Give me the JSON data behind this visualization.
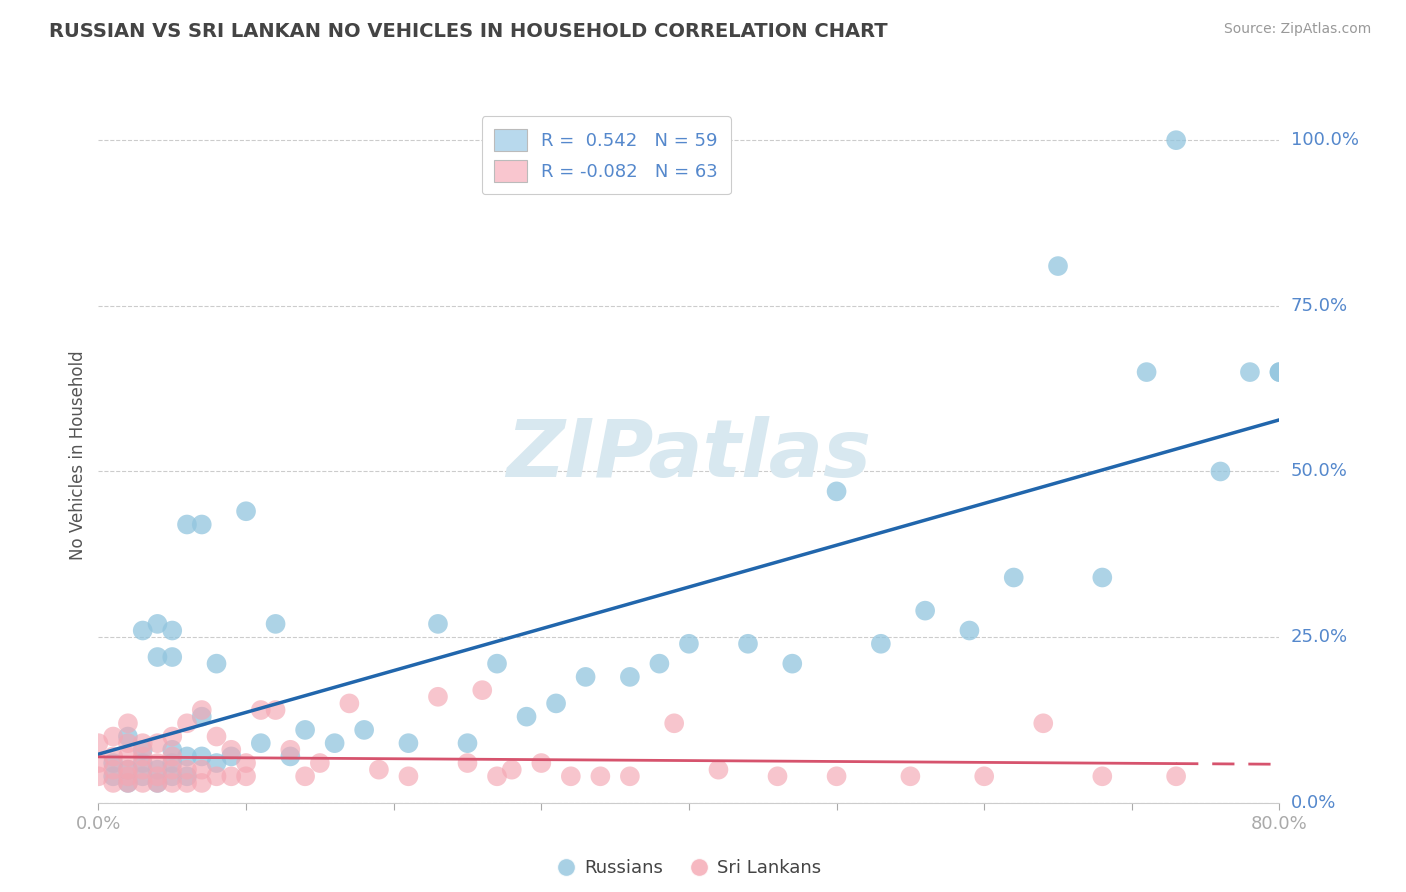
{
  "title": "RUSSIAN VS SRI LANKAN NO VEHICLES IN HOUSEHOLD CORRELATION CHART",
  "source": "Source: ZipAtlas.com",
  "ylabel": "No Vehicles in Household",
  "ytick_labels": [
    "0.0%",
    "25.0%",
    "50.0%",
    "75.0%",
    "100.0%"
  ],
  "ytick_values": [
    0.0,
    0.25,
    0.5,
    0.75,
    1.0
  ],
  "xlim": [
    0.0,
    0.8
  ],
  "ylim": [
    0.0,
    1.05
  ],
  "russian_R": 0.542,
  "russian_N": 59,
  "srilankan_R": -0.082,
  "srilankan_N": 63,
  "russian_color": "#92c5de",
  "srilankan_color": "#f4a6b2",
  "russian_legend_color": "#b8d9ed",
  "srilankan_legend_color": "#f9c6cf",
  "trend_blue": "#2166ac",
  "trend_pink": "#d6536d",
  "trend_pink_dash": "#d6536d",
  "watermark": "ZIPatlas",
  "watermark_color": "#d8e8f0",
  "background_color": "#ffffff",
  "title_color": "#444444",
  "axis_label_color": "#5588cc",
  "ylabel_color": "#555555",
  "grid_color": "#cccccc",
  "russians_x": [
    0.01,
    0.01,
    0.02,
    0.02,
    0.02,
    0.03,
    0.03,
    0.03,
    0.03,
    0.04,
    0.04,
    0.04,
    0.04,
    0.05,
    0.05,
    0.05,
    0.05,
    0.05,
    0.06,
    0.06,
    0.06,
    0.07,
    0.07,
    0.07,
    0.08,
    0.08,
    0.09,
    0.1,
    0.11,
    0.12,
    0.13,
    0.14,
    0.16,
    0.18,
    0.21,
    0.23,
    0.25,
    0.27,
    0.29,
    0.31,
    0.33,
    0.36,
    0.38,
    0.4,
    0.44,
    0.47,
    0.5,
    0.53,
    0.56,
    0.59,
    0.62,
    0.65,
    0.68,
    0.71,
    0.73,
    0.76,
    0.78,
    0.8,
    0.8
  ],
  "russians_y": [
    0.04,
    0.06,
    0.03,
    0.05,
    0.1,
    0.04,
    0.06,
    0.08,
    0.26,
    0.03,
    0.05,
    0.22,
    0.27,
    0.04,
    0.06,
    0.08,
    0.22,
    0.26,
    0.04,
    0.07,
    0.42,
    0.07,
    0.13,
    0.42,
    0.06,
    0.21,
    0.07,
    0.44,
    0.09,
    0.27,
    0.07,
    0.11,
    0.09,
    0.11,
    0.09,
    0.27,
    0.09,
    0.21,
    0.13,
    0.15,
    0.19,
    0.19,
    0.21,
    0.24,
    0.24,
    0.21,
    0.47,
    0.24,
    0.29,
    0.26,
    0.34,
    0.81,
    0.34,
    0.65,
    1.0,
    0.5,
    0.65,
    0.65,
    0.65
  ],
  "srilankans_x": [
    0.0,
    0.0,
    0.0,
    0.01,
    0.01,
    0.01,
    0.01,
    0.02,
    0.02,
    0.02,
    0.02,
    0.02,
    0.02,
    0.03,
    0.03,
    0.03,
    0.03,
    0.04,
    0.04,
    0.04,
    0.04,
    0.05,
    0.05,
    0.05,
    0.05,
    0.06,
    0.06,
    0.06,
    0.07,
    0.07,
    0.07,
    0.08,
    0.08,
    0.09,
    0.09,
    0.1,
    0.1,
    0.11,
    0.12,
    0.13,
    0.14,
    0.15,
    0.17,
    0.19,
    0.21,
    0.23,
    0.25,
    0.26,
    0.27,
    0.28,
    0.3,
    0.32,
    0.34,
    0.36,
    0.39,
    0.42,
    0.46,
    0.5,
    0.55,
    0.6,
    0.64,
    0.68,
    0.73
  ],
  "srilankans_y": [
    0.04,
    0.06,
    0.09,
    0.03,
    0.05,
    0.07,
    0.1,
    0.03,
    0.04,
    0.05,
    0.07,
    0.09,
    0.12,
    0.03,
    0.05,
    0.07,
    0.09,
    0.03,
    0.04,
    0.06,
    0.09,
    0.03,
    0.05,
    0.07,
    0.1,
    0.03,
    0.05,
    0.12,
    0.03,
    0.05,
    0.14,
    0.04,
    0.1,
    0.04,
    0.08,
    0.04,
    0.06,
    0.14,
    0.14,
    0.08,
    0.04,
    0.06,
    0.15,
    0.05,
    0.04,
    0.16,
    0.06,
    0.17,
    0.04,
    0.05,
    0.06,
    0.04,
    0.04,
    0.04,
    0.12,
    0.05,
    0.04,
    0.04,
    0.04,
    0.04,
    0.12,
    0.04,
    0.04
  ]
}
